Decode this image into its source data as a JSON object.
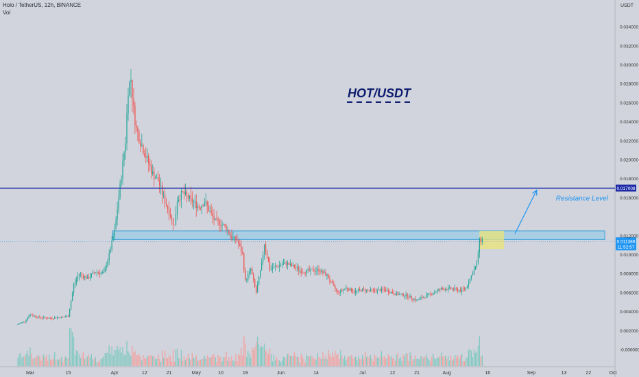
{
  "header": {
    "symbol_line": "Holo / TetherUS, 12h, BINANCE",
    "volume_label": "Vol"
  },
  "axis": {
    "unit": "USDT"
  },
  "chart_data": {
    "type": "candlestick",
    "title": "HOT/USDT",
    "yticks": [
      0.034,
      0.032,
      0.03,
      0.028,
      0.026,
      0.024,
      0.022,
      0.02,
      0.018,
      0.016,
      0.012,
      0.01,
      0.008,
      0.006,
      0.004,
      0.002,
      0.0
    ],
    "ytick_labels": [
      "0.034000",
      "0.032000",
      "0.030000",
      "0.028000",
      "0.026000",
      "0.024000",
      "0.022000",
      "0.020000",
      "0.018000",
      "0.016000",
      "0.012000",
      "0.010000",
      "0.008000",
      "0.006000",
      "0.004000",
      "0.002000",
      "-0.000000"
    ],
    "xticks": [
      {
        "label": "Mar",
        "date": "2021-03-01"
      },
      {
        "label": "15",
        "date": "2021-03-15"
      },
      {
        "label": "Apr",
        "date": "2021-04-01"
      },
      {
        "label": "12",
        "date": "2021-04-12"
      },
      {
        "label": "21",
        "date": "2021-04-21"
      },
      {
        "label": "May",
        "date": "2021-05-01"
      },
      {
        "label": "10",
        "date": "2021-05-10"
      },
      {
        "label": "19",
        "date": "2021-05-19"
      },
      {
        "label": "Jun",
        "date": "2021-06-01"
      },
      {
        "label": "14",
        "date": "2021-06-14"
      },
      {
        "label": "Jul",
        "date": "2021-07-01"
      },
      {
        "label": "12",
        "date": "2021-07-12"
      },
      {
        "label": "21",
        "date": "2021-07-21"
      },
      {
        "label": "Aug",
        "date": "2021-08-01"
      },
      {
        "label": "16",
        "date": "2021-08-16"
      },
      {
        "label": "Sep",
        "date": "2021-09-01"
      },
      {
        "label": "13",
        "date": "2021-09-13"
      },
      {
        "label": "22",
        "date": "2021-09-22"
      },
      {
        "label": "Oct",
        "date": "2021-10-01"
      }
    ],
    "price_path": [
      [
        "2021-02-24",
        0.0026
      ],
      [
        "2021-02-27",
        0.003
      ],
      [
        "2021-03-01",
        0.0037
      ],
      [
        "2021-03-04",
        0.0034
      ],
      [
        "2021-03-08",
        0.0033
      ],
      [
        "2021-03-12",
        0.0034
      ],
      [
        "2021-03-15",
        0.0035
      ],
      [
        "2021-03-17",
        0.0068
      ],
      [
        "2021-03-19",
        0.008
      ],
      [
        "2021-03-22",
        0.0075
      ],
      [
        "2021-03-25",
        0.0082
      ],
      [
        "2021-03-28",
        0.008
      ],
      [
        "2021-03-30",
        0.01
      ],
      [
        "2021-04-01",
        0.0125
      ],
      [
        "2021-04-03",
        0.0172
      ],
      [
        "2021-04-05",
        0.022
      ],
      [
        "2021-04-06",
        0.0275
      ],
      [
        "2021-04-07",
        0.0285
      ],
      [
        "2021-04-08",
        0.0252
      ],
      [
        "2021-04-09",
        0.0232
      ],
      [
        "2021-04-11",
        0.0215
      ],
      [
        "2021-04-13",
        0.02
      ],
      [
        "2021-04-15",
        0.0185
      ],
      [
        "2021-04-17",
        0.0178
      ],
      [
        "2021-04-19",
        0.016
      ],
      [
        "2021-04-21",
        0.0145
      ],
      [
        "2021-04-23",
        0.013
      ],
      [
        "2021-04-24",
        0.0158
      ],
      [
        "2021-04-26",
        0.0165
      ],
      [
        "2021-04-28",
        0.016
      ],
      [
        "2021-04-30",
        0.0155
      ],
      [
        "2021-05-02",
        0.015
      ],
      [
        "2021-05-04",
        0.0156
      ],
      [
        "2021-05-06",
        0.0145
      ],
      [
        "2021-05-08",
        0.0135
      ],
      [
        "2021-05-10",
        0.0133
      ],
      [
        "2021-05-12",
        0.0128
      ],
      [
        "2021-05-14",
        0.0118
      ],
      [
        "2021-05-16",
        0.0115
      ],
      [
        "2021-05-18",
        0.01
      ],
      [
        "2021-05-19",
        0.0072
      ],
      [
        "2021-05-21",
        0.0085
      ],
      [
        "2021-05-23",
        0.006
      ],
      [
        "2021-05-25",
        0.009
      ],
      [
        "2021-05-26",
        0.0112
      ],
      [
        "2021-05-28",
        0.0085
      ],
      [
        "2021-05-31",
        0.0088
      ],
      [
        "2021-06-03",
        0.0091
      ],
      [
        "2021-06-06",
        0.0087
      ],
      [
        "2021-06-09",
        0.0082
      ],
      [
        "2021-06-12",
        0.0083
      ],
      [
        "2021-06-15",
        0.0084
      ],
      [
        "2021-06-18",
        0.0078
      ],
      [
        "2021-06-20",
        0.0068
      ],
      [
        "2021-06-22",
        0.006
      ],
      [
        "2021-06-25",
        0.0065
      ],
      [
        "2021-06-28",
        0.0061
      ],
      [
        "2021-07-01",
        0.0063
      ],
      [
        "2021-07-05",
        0.0062
      ],
      [
        "2021-07-09",
        0.0063
      ],
      [
        "2021-07-13",
        0.0059
      ],
      [
        "2021-07-17",
        0.0057
      ],
      [
        "2021-07-21",
        0.0052
      ],
      [
        "2021-07-24",
        0.0056
      ],
      [
        "2021-07-27",
        0.006
      ],
      [
        "2021-07-30",
        0.0064
      ],
      [
        "2021-08-03",
        0.0064
      ],
      [
        "2021-08-06",
        0.0062
      ],
      [
        "2021-08-08",
        0.0065
      ],
      [
        "2021-08-10",
        0.0078
      ],
      [
        "2021-08-12",
        0.009
      ],
      [
        "2021-08-13",
        0.0115
      ],
      [
        "2021-08-14",
        0.0116
      ]
    ],
    "horizontal_line": {
      "value": 0.017008,
      "label": "0.017008",
      "color": "#1c2aa8"
    },
    "current_price": {
      "value": 0.011389,
      "label": "0.011389",
      "countdown": "11:52:57",
      "color": "#2196f3"
    },
    "resistance_zone": {
      "from_date": "2021-04-01",
      "to_date": "2021-09-28",
      "low": 0.0116,
      "high": 0.0125
    },
    "highlight_box": {
      "from_date": "2021-08-13",
      "to_date": "2021-08-22",
      "low": 0.0106,
      "high": 0.0125
    },
    "arrow": {
      "from": [
        "2021-08-26",
        0.0122
      ],
      "to": [
        "2021-09-03",
        0.0168
      ]
    },
    "annotation": {
      "text": "Resistance Level",
      "date": "2021-09-03",
      "value": 0.0157
    },
    "colors": {
      "up": "#26a69a",
      "down": "#ef5350",
      "vol_up": "#80c9c1",
      "vol_down": "#f3a19f"
    }
  }
}
